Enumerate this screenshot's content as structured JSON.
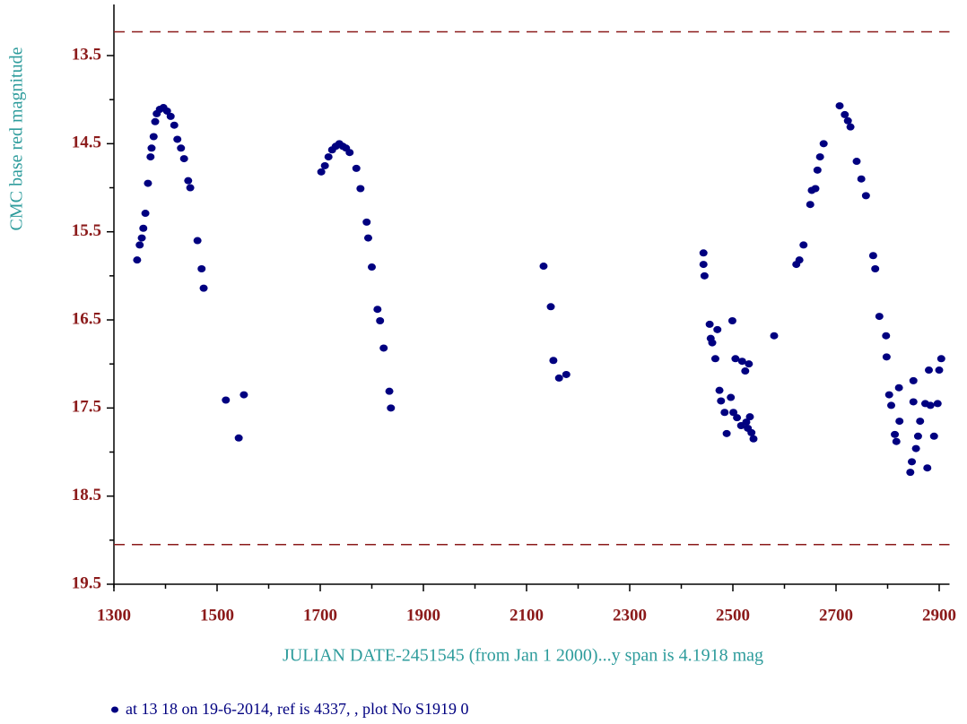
{
  "chart_data": {
    "type": "scatter",
    "ylabel": "CMC base red magnitude",
    "xlabel": "JULIAN DATE-2451545 (from Jan 1 2000)...y span is 4.1918 mag",
    "xlim": [
      1300,
      2920
    ],
    "ylim": [
      12.92,
      19.5
    ],
    "invert_y": true,
    "xticks": [
      1300,
      1500,
      1700,
      1900,
      2100,
      2300,
      2500,
      2700,
      2900
    ],
    "xminor_ticks": [
      1400,
      1600,
      1800,
      2000,
      2200,
      2400,
      2600,
      2800
    ],
    "yticks": [
      13.5,
      14.5,
      15.5,
      16.5,
      17.5,
      18.5,
      19.5
    ],
    "yminor_ticks": [
      14,
      15,
      16,
      17,
      18,
      19
    ],
    "hlines": [
      13.23,
      19.05
    ],
    "hline_color": "#8b1a1a",
    "series": [
      {
        "name": "at 13 18 on 19-6-2014, ref is 4337, ,  plot No S1919 0",
        "color": "#000080",
        "x": [
          1345,
          1350,
          1354,
          1357,
          1361,
          1366,
          1371,
          1373,
          1377,
          1380,
          1383,
          1389,
          1396,
          1403,
          1410,
          1417,
          1423,
          1430,
          1436,
          1444,
          1448,
          1462,
          1470,
          1474,
          1517,
          1542,
          1552,
          1702,
          1709,
          1716,
          1723,
          1730,
          1737,
          1744,
          1750,
          1757,
          1770,
          1778,
          1790,
          1793,
          1800,
          1811,
          1816,
          1823,
          1834,
          1837,
          2133,
          2147,
          2152,
          2163,
          2177,
          2443,
          2443,
          2445,
          2455,
          2457,
          2460,
          2466,
          2470,
          2474,
          2477,
          2484,
          2488,
          2496,
          2499,
          2501,
          2505,
          2508,
          2516,
          2518,
          2524,
          2526,
          2529,
          2533,
          2536,
          2540,
          2531,
          2580,
          2623,
          2629,
          2637,
          2650,
          2653,
          2660,
          2664,
          2669,
          2676,
          2707,
          2717,
          2723,
          2728,
          2740,
          2749,
          2758,
          2772,
          2776,
          2784,
          2797,
          2798,
          2803,
          2807,
          2814,
          2817,
          2823,
          2822,
          2844,
          2847,
          2850,
          2855,
          2859,
          2863,
          2873,
          2877,
          2880,
          2883,
          2890,
          2897,
          2900,
          2904,
          2850
        ],
        "values": [
          15.82,
          15.65,
          15.57,
          15.46,
          15.29,
          14.95,
          14.65,
          14.55,
          14.42,
          14.25,
          14.16,
          14.11,
          14.09,
          14.13,
          14.19,
          14.29,
          14.45,
          14.55,
          14.67,
          14.92,
          15.0,
          15.6,
          15.92,
          16.14,
          17.41,
          17.84,
          17.35,
          14.82,
          14.75,
          14.65,
          14.57,
          14.53,
          14.5,
          14.53,
          14.55,
          14.6,
          14.78,
          15.01,
          15.39,
          15.57,
          15.9,
          16.38,
          16.51,
          16.82,
          17.31,
          17.5,
          15.89,
          16.35,
          16.96,
          17.16,
          17.12,
          15.74,
          15.87,
          16.0,
          16.55,
          16.71,
          16.76,
          16.94,
          16.61,
          17.3,
          17.42,
          17.55,
          17.79,
          17.38,
          16.51,
          17.55,
          16.94,
          17.61,
          17.7,
          16.97,
          17.08,
          17.66,
          17.73,
          17.6,
          17.78,
          17.85,
          17.0,
          16.68,
          15.87,
          15.82,
          15.65,
          15.19,
          15.03,
          15.01,
          14.8,
          14.65,
          14.5,
          14.07,
          14.17,
          14.24,
          14.31,
          14.7,
          14.9,
          15.09,
          15.77,
          15.92,
          16.46,
          16.68,
          16.92,
          17.35,
          17.47,
          17.8,
          17.88,
          17.65,
          17.27,
          18.23,
          18.11,
          17.19,
          17.96,
          17.82,
          17.65,
          17.45,
          18.18,
          17.07,
          17.47,
          17.82,
          17.45,
          17.07,
          16.94,
          17.43
        ]
      }
    ]
  }
}
